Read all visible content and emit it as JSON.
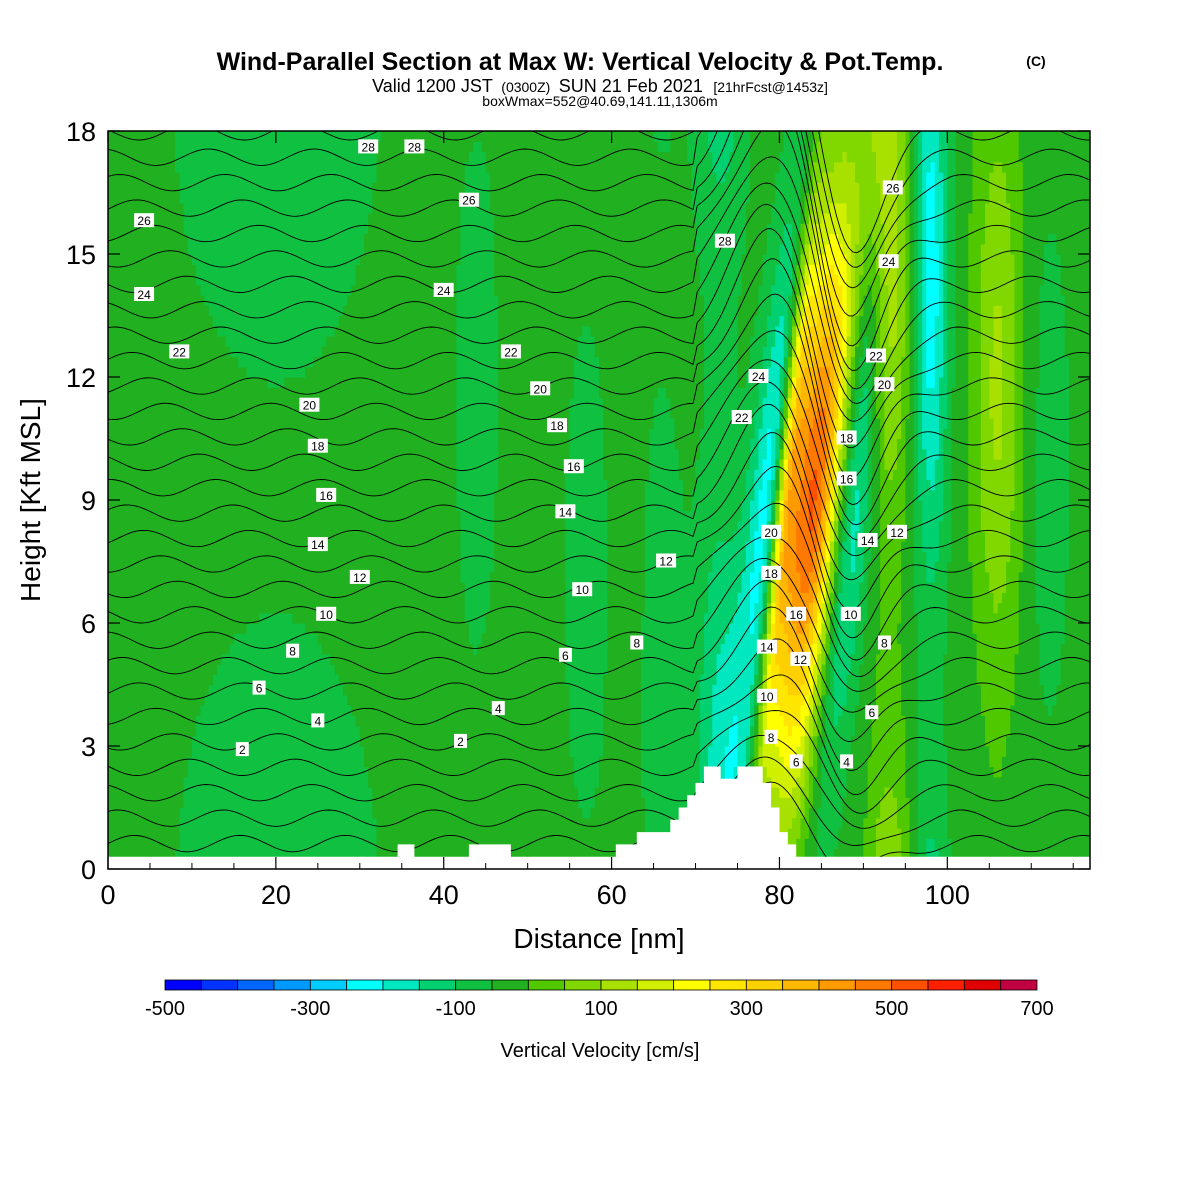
{
  "header": {
    "title": "Wind-Parallel Section at Max W: Vertical Velocity & Pot.Temp.",
    "copyright": "(C)",
    "valid_a": "Valid 1200 JST",
    "valid_b": "(0300Z)",
    "valid_c": "SUN 21 Feb 2021",
    "valid_d": "[21hrFcst@1453z]",
    "box_info": "boxWmax=552@40.69,141.11,1306m"
  },
  "chart_data": {
    "type": "heatmap",
    "title": "Wind-Parallel Section at Max W: Vertical Velocity & Pot.Temp.",
    "xlabel": "Distance [nm]",
    "ylabel": "Height [Kft MSL]",
    "xlim": [
      0,
      117
    ],
    "ylim": [
      0,
      18
    ],
    "x_ticks": [
      "0",
      "20",
      "40",
      "60",
      "80",
      "100"
    ],
    "y_ticks": [
      "0",
      "3",
      "6",
      "9",
      "12",
      "15",
      "18"
    ],
    "x_tick_values": [
      0,
      20,
      40,
      60,
      80,
      100
    ],
    "y_tick_values": [
      0,
      3,
      6,
      9,
      12,
      15,
      18
    ],
    "colorbar": {
      "label": "Vertical Velocity [cm/s]",
      "tick_labels": [
        "-500",
        "-300",
        "-100",
        "100",
        "300",
        "500",
        "700"
      ],
      "tick_values": [
        -500,
        -300,
        -100,
        100,
        300,
        500,
        700
      ],
      "min": -500,
      "max": 700,
      "step": 50,
      "colors": [
        "#0000ff",
        "#0033ff",
        "#0066ff",
        "#0099ff",
        "#00ccff",
        "#00ffff",
        "#00e8c0",
        "#00d070",
        "#10c040",
        "#20b020",
        "#50c800",
        "#80d800",
        "#a8e000",
        "#d0f000",
        "#ffff00",
        "#ffe600",
        "#ffd000",
        "#ffb800",
        "#ff9a00",
        "#ff7800",
        "#ff5000",
        "#ff2000",
        "#e00000",
        "#c00040",
        "#900070",
        "#60009a"
      ]
    },
    "w_features": [
      {
        "x": 83.5,
        "w": 550,
        "width": 4.0
      },
      {
        "x": 78.5,
        "w": -280,
        "width": 2.5
      },
      {
        "x": 80.3,
        "w": 250,
        "width": 1.3
      },
      {
        "x": 88.0,
        "w": -250,
        "width": 2.5
      },
      {
        "x": 93.0,
        "w": 200,
        "width": 2.5
      },
      {
        "x": 98.0,
        "w": -200,
        "width": 2.0
      },
      {
        "x": 106.0,
        "w": 140,
        "width": 3.0
      },
      {
        "x": 112.0,
        "w": -40,
        "width": 3.0
      },
      {
        "x": 73.0,
        "w": -140,
        "width": 3.0
      },
      {
        "x": 66.0,
        "w": -60,
        "width": 2.5
      },
      {
        "x": 62.0,
        "w": 20,
        "width": 1.5
      },
      {
        "x": 57.0,
        "w": -40,
        "width": 3.0
      },
      {
        "x": 50.0,
        "w": 10,
        "width": 2.5
      },
      {
        "x": 44.0,
        "w": -40,
        "width": 3.0
      },
      {
        "x": 38.0,
        "w": 15,
        "width": 2.0
      },
      {
        "x": 20.0,
        "w": -60,
        "width": 12.0
      },
      {
        "x": 4.0,
        "w": 5,
        "width": 4.0
      }
    ],
    "terrain": [
      [
        0,
        0.3
      ],
      [
        34.5,
        0.3
      ],
      [
        34.5,
        0.6
      ],
      [
        36.5,
        0.6
      ],
      [
        36.5,
        0.3
      ],
      [
        43,
        0.3
      ],
      [
        43,
        0.6
      ],
      [
        48,
        0.6
      ],
      [
        48,
        0.3
      ],
      [
        60.5,
        0.3
      ],
      [
        60.5,
        0.6
      ],
      [
        63,
        0.6
      ],
      [
        63,
        0.9
      ],
      [
        67,
        0.9
      ],
      [
        67,
        1.2
      ],
      [
        68,
        1.2
      ],
      [
        68,
        1.5
      ],
      [
        69,
        1.5
      ],
      [
        69,
        1.8
      ],
      [
        70,
        1.8
      ],
      [
        70,
        2.1
      ],
      [
        71,
        2.1
      ],
      [
        71,
        2.5
      ],
      [
        73,
        2.5
      ],
      [
        73,
        2.2
      ],
      [
        75,
        2.2
      ],
      [
        75,
        2.5
      ],
      [
        78,
        2.5
      ],
      [
        78,
        2.1
      ],
      [
        79,
        2.1
      ],
      [
        79,
        1.5
      ],
      [
        80,
        1.5
      ],
      [
        80,
        0.9
      ],
      [
        81,
        0.9
      ],
      [
        81,
        0.6
      ],
      [
        82,
        0.6
      ],
      [
        82,
        0.3
      ],
      [
        117,
        0.3
      ]
    ],
    "theta_levels": [
      1,
      2,
      3,
      4,
      5,
      6,
      7,
      8,
      9,
      10,
      11,
      12,
      13,
      14,
      15,
      16,
      17,
      18,
      19,
      20,
      21,
      22,
      23,
      24,
      25,
      26,
      27,
      28,
      29
    ],
    "contour_labels": [
      {
        "x": 16,
        "y": 2.9,
        "text": "2"
      },
      {
        "x": 25,
        "y": 3.6,
        "text": "4"
      },
      {
        "x": 18,
        "y": 4.4,
        "text": "6"
      },
      {
        "x": 22,
        "y": 5.3,
        "text": "8"
      },
      {
        "x": 26,
        "y": 6.2,
        "text": "10"
      },
      {
        "x": 30,
        "y": 7.1,
        "text": "12"
      },
      {
        "x": 25,
        "y": 7.9,
        "text": "14"
      },
      {
        "x": 26,
        "y": 9.1,
        "text": "16"
      },
      {
        "x": 25,
        "y": 10.3,
        "text": "18"
      },
      {
        "x": 24,
        "y": 11.3,
        "text": "20"
      },
      {
        "x": 8.5,
        "y": 12.6,
        "text": "22"
      },
      {
        "x": 4.3,
        "y": 14.0,
        "text": "24"
      },
      {
        "x": 4.3,
        "y": 15.8,
        "text": "26"
      },
      {
        "x": 31,
        "y": 17.6,
        "text": "28"
      },
      {
        "x": 36.5,
        "y": 17.6,
        "text": "28"
      },
      {
        "x": 42,
        "y": 3.1,
        "text": "2"
      },
      {
        "x": 46.5,
        "y": 3.9,
        "text": "4"
      },
      {
        "x": 54.5,
        "y": 5.2,
        "text": "6"
      },
      {
        "x": 63,
        "y": 5.5,
        "text": "8"
      },
      {
        "x": 56.5,
        "y": 6.8,
        "text": "10"
      },
      {
        "x": 66.5,
        "y": 7.5,
        "text": "12"
      },
      {
        "x": 54.5,
        "y": 8.7,
        "text": "14"
      },
      {
        "x": 55.5,
        "y": 9.8,
        "text": "16"
      },
      {
        "x": 53.5,
        "y": 10.8,
        "text": "18"
      },
      {
        "x": 51.5,
        "y": 11.7,
        "text": "20"
      },
      {
        "x": 48,
        "y": 12.6,
        "text": "22"
      },
      {
        "x": 40,
        "y": 14.1,
        "text": "24"
      },
      {
        "x": 43,
        "y": 16.3,
        "text": "26"
      },
      {
        "x": 73.5,
        "y": 15.3,
        "text": "28"
      },
      {
        "x": 77.5,
        "y": 12.0,
        "text": "24"
      },
      {
        "x": 75.5,
        "y": 11.0,
        "text": "22"
      },
      {
        "x": 79,
        "y": 8.2,
        "text": "20"
      },
      {
        "x": 79,
        "y": 7.2,
        "text": "18"
      },
      {
        "x": 82,
        "y": 6.2,
        "text": "16"
      },
      {
        "x": 78.5,
        "y": 5.4,
        "text": "14"
      },
      {
        "x": 82.5,
        "y": 5.1,
        "text": "12"
      },
      {
        "x": 78.5,
        "y": 4.2,
        "text": "10"
      },
      {
        "x": 79,
        "y": 3.2,
        "text": "8"
      },
      {
        "x": 82,
        "y": 2.6,
        "text": "6"
      },
      {
        "x": 88,
        "y": 2.6,
        "text": "4"
      },
      {
        "x": 91,
        "y": 3.8,
        "text": "6"
      },
      {
        "x": 92.5,
        "y": 5.5,
        "text": "8"
      },
      {
        "x": 88.5,
        "y": 6.2,
        "text": "10"
      },
      {
        "x": 94,
        "y": 8.2,
        "text": "12"
      },
      {
        "x": 90.5,
        "y": 8.0,
        "text": "14"
      },
      {
        "x": 88,
        "y": 9.5,
        "text": "16"
      },
      {
        "x": 88,
        "y": 10.5,
        "text": "18"
      },
      {
        "x": 92.5,
        "y": 11.8,
        "text": "20"
      },
      {
        "x": 91.5,
        "y": 12.5,
        "text": "22"
      },
      {
        "x": 93,
        "y": 14.8,
        "text": "24"
      },
      {
        "x": 93.5,
        "y": 16.6,
        "text": "26"
      }
    ]
  }
}
